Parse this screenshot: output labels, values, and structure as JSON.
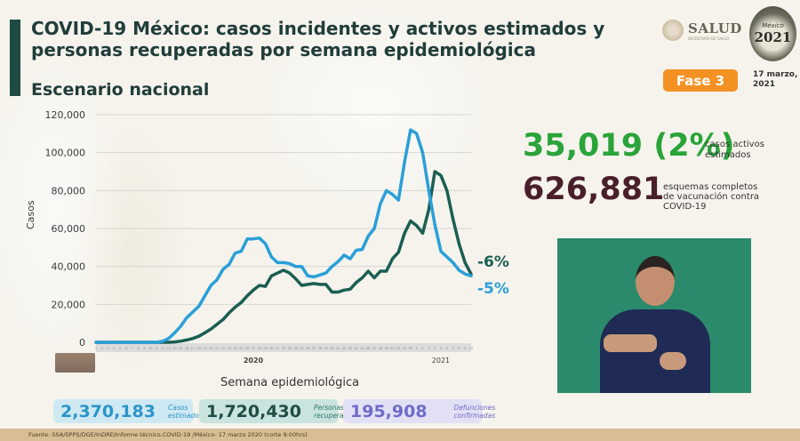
{
  "header": {
    "title": "COVID-19 México: casos incidentes y activos estimados y personas recuperadas por semana epidemiológica",
    "subtitle": "Escenario nacional",
    "logo_salud": "SALUD",
    "logo_salud_sub": "SECRETARÍA DE SALUD",
    "logo_2021_year": "2021",
    "logo_2021_text": "México",
    "phase_badge": "Fase 3",
    "date_line1": "17 marzo,",
    "date_line2": "2021"
  },
  "stats": {
    "active_cases_value": "35,019 (2%)",
    "active_cases_label": "casos activos estimados",
    "vaccination_value": "626,881",
    "vaccination_label": "esquemas completos de vacunación contra COVID-19"
  },
  "cards": [
    {
      "value": "2,370,183",
      "label": "Casos estimados",
      "color": "#2a95c9"
    },
    {
      "value": "1,720,430",
      "label": "Personas recuperadas",
      "color": "#1e4d45"
    },
    {
      "value": "195,908",
      "label": "Defunciones confirmadas",
      "color": "#6f6cc8"
    }
  ],
  "footer": {
    "source": "Fuente: SSA/SPPS/DGE/InDRE/Informe técnico.COVID-19 /México- 17 marzo 2020 (corte 9:00hrs)"
  },
  "colors": {
    "incident_line": "#2a9fd8",
    "active_line": "#1b5e52",
    "title_bar": "#1d4a42",
    "phase_badge": "#f39123",
    "active_stat": "#2aa43a",
    "vaccination_stat": "#4a1f2b"
  },
  "chart_data": {
    "type": "line",
    "title": "",
    "xlabel": "Semana epidemiológica",
    "ylabel": "Casos",
    "ylim": [
      0,
      120000
    ],
    "yticks": [
      0,
      20000,
      40000,
      60000,
      80000,
      100000,
      120000
    ],
    "ytick_labels": [
      "0",
      "20,000",
      "40,000",
      "60,000",
      "80,000",
      "100,000",
      "120,000"
    ],
    "year_labels": [
      {
        "label": "2020",
        "week_index": 26
      },
      {
        "label": "2021",
        "week_index": 57
      }
    ],
    "grid": true,
    "x": [
      1,
      2,
      3,
      4,
      5,
      6,
      7,
      8,
      9,
      10,
      11,
      12,
      13,
      14,
      15,
      16,
      17,
      18,
      19,
      20,
      21,
      22,
      23,
      24,
      25,
      26,
      27,
      28,
      29,
      30,
      31,
      32,
      33,
      34,
      35,
      36,
      37,
      38,
      39,
      40,
      41,
      42,
      43,
      44,
      45,
      46,
      47,
      48,
      49,
      50,
      51,
      52,
      53,
      1,
      2,
      3,
      4,
      5,
      6,
      7,
      8,
      9,
      10
    ],
    "series": [
      {
        "name": "Casos incidentes estimados",
        "color": "#2a9fd8",
        "end_label": "-5%",
        "values": [
          0,
          0,
          0,
          0,
          0,
          0,
          0,
          0,
          0,
          0,
          0,
          500,
          2000,
          5000,
          8500,
          13000,
          16000,
          19000,
          24500,
          30000,
          33000,
          38500,
          41000,
          47000,
          48000,
          54500,
          54500,
          55000,
          52000,
          45000,
          42000,
          42000,
          41500,
          40000,
          40000,
          35000,
          34500,
          35500,
          36500,
          40000,
          42500,
          46000,
          44000,
          48500,
          49000,
          56000,
          60000,
          73000,
          80000,
          78000,
          75000,
          95000,
          112000,
          110000,
          100000,
          80000,
          62000,
          48000,
          45000,
          42000,
          38000,
          36000,
          35000
        ]
      },
      {
        "name": "Casos activos estimados",
        "color": "#1b5e52",
        "end_label": "-6%",
        "values": [
          0,
          0,
          0,
          0,
          0,
          0,
          0,
          0,
          0,
          0,
          0,
          0,
          0,
          200,
          600,
          1200,
          2000,
          3200,
          5000,
          7000,
          9500,
          12000,
          15500,
          18500,
          21000,
          24500,
          27500,
          30000,
          29500,
          35000,
          36500,
          38000,
          36500,
          33500,
          30000,
          30500,
          31000,
          30500,
          30500,
          26500,
          26500,
          27500,
          28000,
          31500,
          34000,
          37500,
          34000,
          37500,
          37500,
          44000,
          47500,
          57500,
          64000,
          61500,
          57500,
          70000,
          90000,
          88000,
          80000,
          65000,
          52000,
          42000,
          36000
        ]
      }
    ]
  }
}
